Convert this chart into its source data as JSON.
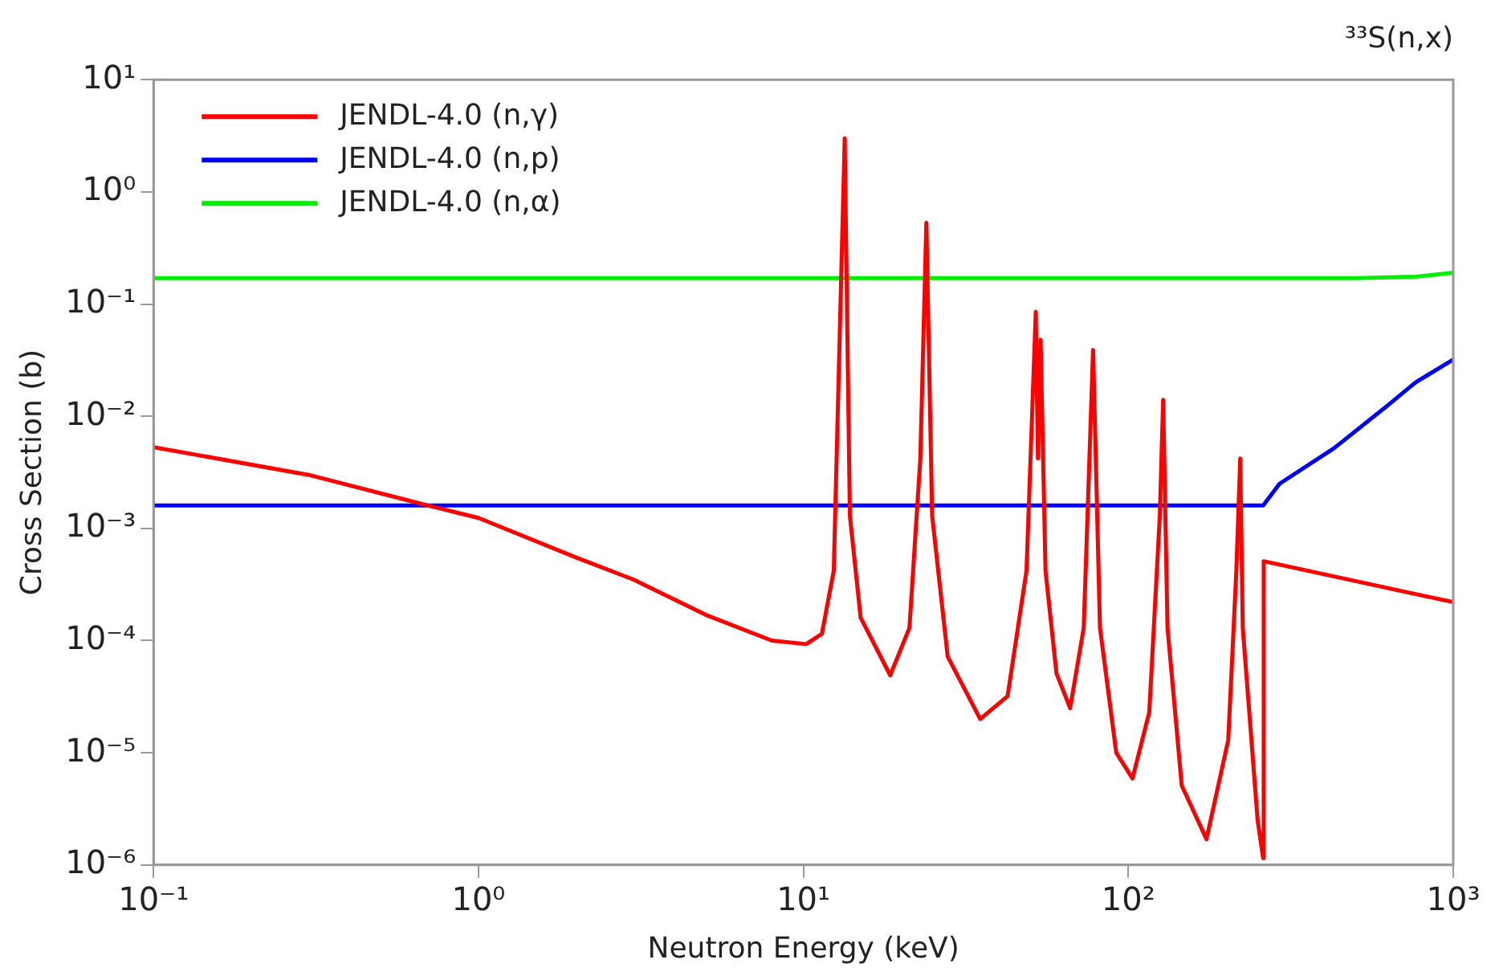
{
  "chart_data": {
    "type": "line",
    "title": "³³S(n,x)",
    "xlabel": "Neutron Energy (keV)",
    "ylabel": "Cross Section (b)",
    "log": "xy",
    "xlim": [
      0.1,
      1000
    ],
    "ylim": [
      1e-06,
      10
    ],
    "xticks": [
      {
        "value": 0.1,
        "label": "10⁻¹"
      },
      {
        "value": 1,
        "label": "10⁰"
      },
      {
        "value": 10,
        "label": "10¹"
      },
      {
        "value": 100,
        "label": "10²"
      },
      {
        "value": 1000,
        "label": "10³"
      }
    ],
    "yticks": [
      {
        "value": 1e-06,
        "label": "10⁻⁶"
      },
      {
        "value": 1e-05,
        "label": "10⁻⁵"
      },
      {
        "value": 0.0001,
        "label": "10⁻⁴"
      },
      {
        "value": 0.001,
        "label": "10⁻³"
      },
      {
        "value": 0.01,
        "label": "10⁻²"
      },
      {
        "value": 0.1,
        "label": "10⁻¹"
      },
      {
        "value": 1,
        "label": "10⁰"
      },
      {
        "value": 10,
        "label": "10¹"
      }
    ],
    "grid": false,
    "legend": "top left",
    "marker": "none",
    "line_style": "solid",
    "series": [
      {
        "name": "JENDL-4.0 (n,γ)",
        "color": "#ff0000",
        "x": [
          0.1,
          0.3,
          0.7,
          1,
          2,
          3,
          5,
          8,
          10.2,
          11.4,
          12.4,
          13.4,
          13.9,
          15,
          18.5,
          21.2,
          22.9,
          23.9,
          24.9,
          27.8,
          35,
          42.5,
          48.6,
          51.9,
          52.7,
          53.7,
          55.6,
          60.1,
          66.2,
          72.9,
          77.9,
          81.8,
          91.8,
          103,
          116,
          125,
          128,
          132,
          146,
          174,
          203,
          215,
          221,
          225,
          250,
          260,
          261,
          1000
        ],
        "values": [
          0.0053,
          0.003,
          0.0016,
          0.00124,
          0.00055,
          0.00035,
          0.00017,
          0.0001,
          9.3e-05,
          0.000115,
          0.00042,
          3.0,
          0.0013,
          0.00016,
          4.9e-05,
          0.00013,
          0.0042,
          0.53,
          0.0013,
          7.2e-05,
          2e-05,
          3.2e-05,
          0.00042,
          0.085,
          0.0042,
          0.048,
          0.00042,
          5.1e-05,
          2.5e-05,
          0.00013,
          0.039,
          0.00013,
          1e-05,
          5.9e-06,
          2.3e-05,
          0.0013,
          0.014,
          0.00013,
          5.1e-06,
          1.7e-06,
          1.3e-05,
          0.00042,
          0.0042,
          0.00013,
          2.5e-06,
          1.15e-06,
          0.00051,
          0.00022
        ]
      },
      {
        "name": "JENDL-4.0 (n,p)",
        "color": "#0000ff",
        "x": [
          0.1,
          260,
          292,
          430,
          631,
          765,
          1000
        ],
        "values": [
          0.0016,
          0.0016,
          0.0025,
          0.0052,
          0.0126,
          0.02,
          0.032
        ]
      },
      {
        "name": "JENDL-4.0 (n,α)",
        "color": "#00ee00",
        "x": [
          0.1,
          500,
          765,
          1000
        ],
        "values": [
          0.17,
          0.17,
          0.175,
          0.19
        ]
      }
    ]
  }
}
